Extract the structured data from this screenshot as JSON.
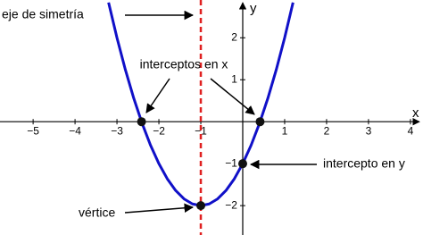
{
  "chart_data": {
    "type": "line",
    "x_label": "x",
    "y_label": "y",
    "xlim": [
      -5.79,
      4.3
    ],
    "ylim": [
      -2.7,
      2.9
    ],
    "xticks": [
      {
        "value": -5,
        "label": "−5"
      },
      {
        "value": -4,
        "label": "−4"
      },
      {
        "value": -3,
        "label": "−3"
      },
      {
        "value": -2,
        "label": "−2"
      },
      {
        "value": -1,
        "label": "−1"
      },
      1,
      2,
      3,
      4
    ],
    "yticks": [
      {
        "value": -2,
        "label": "−2"
      },
      {
        "value": -1,
        "label": "−1"
      },
      1,
      2
    ],
    "series": [
      {
        "color": "#1010c8",
        "x": [
          -3.2,
          -3.0,
          -2.8,
          -2.6,
          -2.4,
          -2.2,
          -2.0,
          -1.8,
          -1.6,
          -1.4,
          -1.2,
          -1.0,
          -0.8,
          -0.6,
          -0.4,
          -0.2,
          0.0,
          0.2,
          0.4,
          0.6,
          0.8,
          1.0,
          1.2
        ],
        "values": [
          2.84,
          2,
          1.24,
          0.56,
          -0.04,
          -0.56,
          -1,
          -1.36,
          -1.64,
          -1.84,
          -1.96,
          -2,
          -1.96,
          -1.84,
          -1.64,
          -1.36,
          -1,
          -0.56,
          -0.04,
          0.56,
          1.24,
          2,
          2.84
        ]
      }
    ],
    "symmetry_x": -1,
    "symmetry_color": "#e02020",
    "points": {
      "x": [
        -2.414,
        0.414,
        0,
        -1
      ],
      "y": [
        0,
        0,
        -1,
        -2
      ]
    },
    "annotations": [
      "eje de simetría",
      "interceptos en x",
      "intercepto en y",
      "vértice"
    ]
  }
}
